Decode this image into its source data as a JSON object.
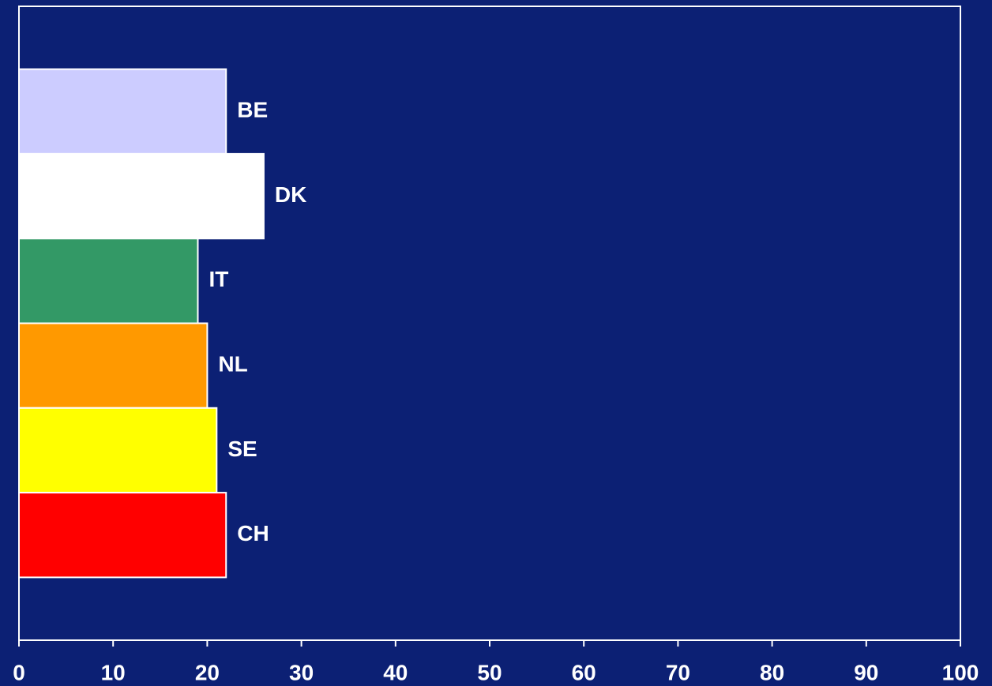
{
  "chart_data": {
    "type": "bar",
    "orientation": "horizontal",
    "categories": [
      "BE",
      "DK",
      "IT",
      "NL",
      "SE",
      "CH"
    ],
    "values": [
      22,
      26,
      19,
      20,
      21,
      22
    ],
    "colors": [
      "#ccccff",
      "#ffffff",
      "#339966",
      "#ff9900",
      "#ffff00",
      "#ff0000"
    ],
    "xlim": [
      0,
      100
    ],
    "xticks": [
      0,
      10,
      20,
      30,
      40,
      50,
      60,
      70,
      80,
      90,
      100
    ]
  }
}
